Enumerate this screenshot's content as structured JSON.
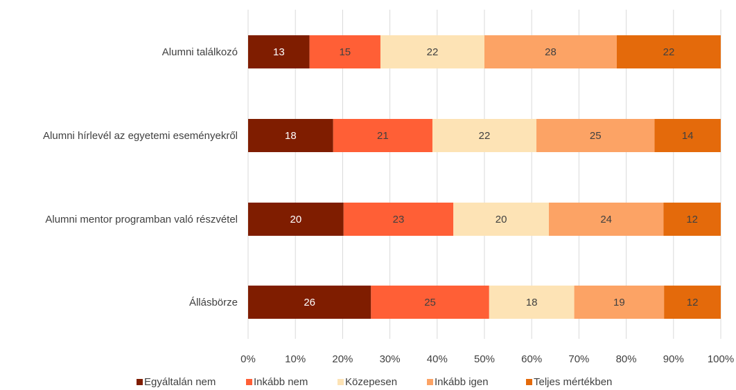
{
  "chart_data": {
    "type": "bar",
    "orientation": "horizontal",
    "stacked": "percent",
    "categories": [
      "Alumni találkozó",
      "Alumni hírlevél az egyetemi eseményekről",
      "Alumni mentor programban való részvétel",
      "Állásbörze"
    ],
    "series": [
      {
        "name": "Egyáltalán nem",
        "color": "#7f1d00",
        "values": [
          13,
          18,
          20,
          26
        ]
      },
      {
        "name": "Inkább nem",
        "color": "#ff5f36",
        "values": [
          15,
          21,
          23,
          25
        ]
      },
      {
        "name": "Közepesen",
        "color": "#fde3b5",
        "values": [
          22,
          22,
          20,
          18
        ]
      },
      {
        "name": "Inkább igen",
        "color": "#fca365",
        "values": [
          28,
          25,
          24,
          19
        ]
      },
      {
        "name": "Teljes mértékben",
        "color": "#e46a0b",
        "values": [
          22,
          14,
          12,
          12
        ]
      }
    ],
    "x_ticks": [
      "0%",
      "10%",
      "20%",
      "30%",
      "40%",
      "50%",
      "60%",
      "70%",
      "80%",
      "90%",
      "100%"
    ],
    "xlim": [
      0,
      100
    ],
    "grid": true,
    "legend": "bottom",
    "title": "",
    "xlabel": "",
    "ylabel": ""
  }
}
